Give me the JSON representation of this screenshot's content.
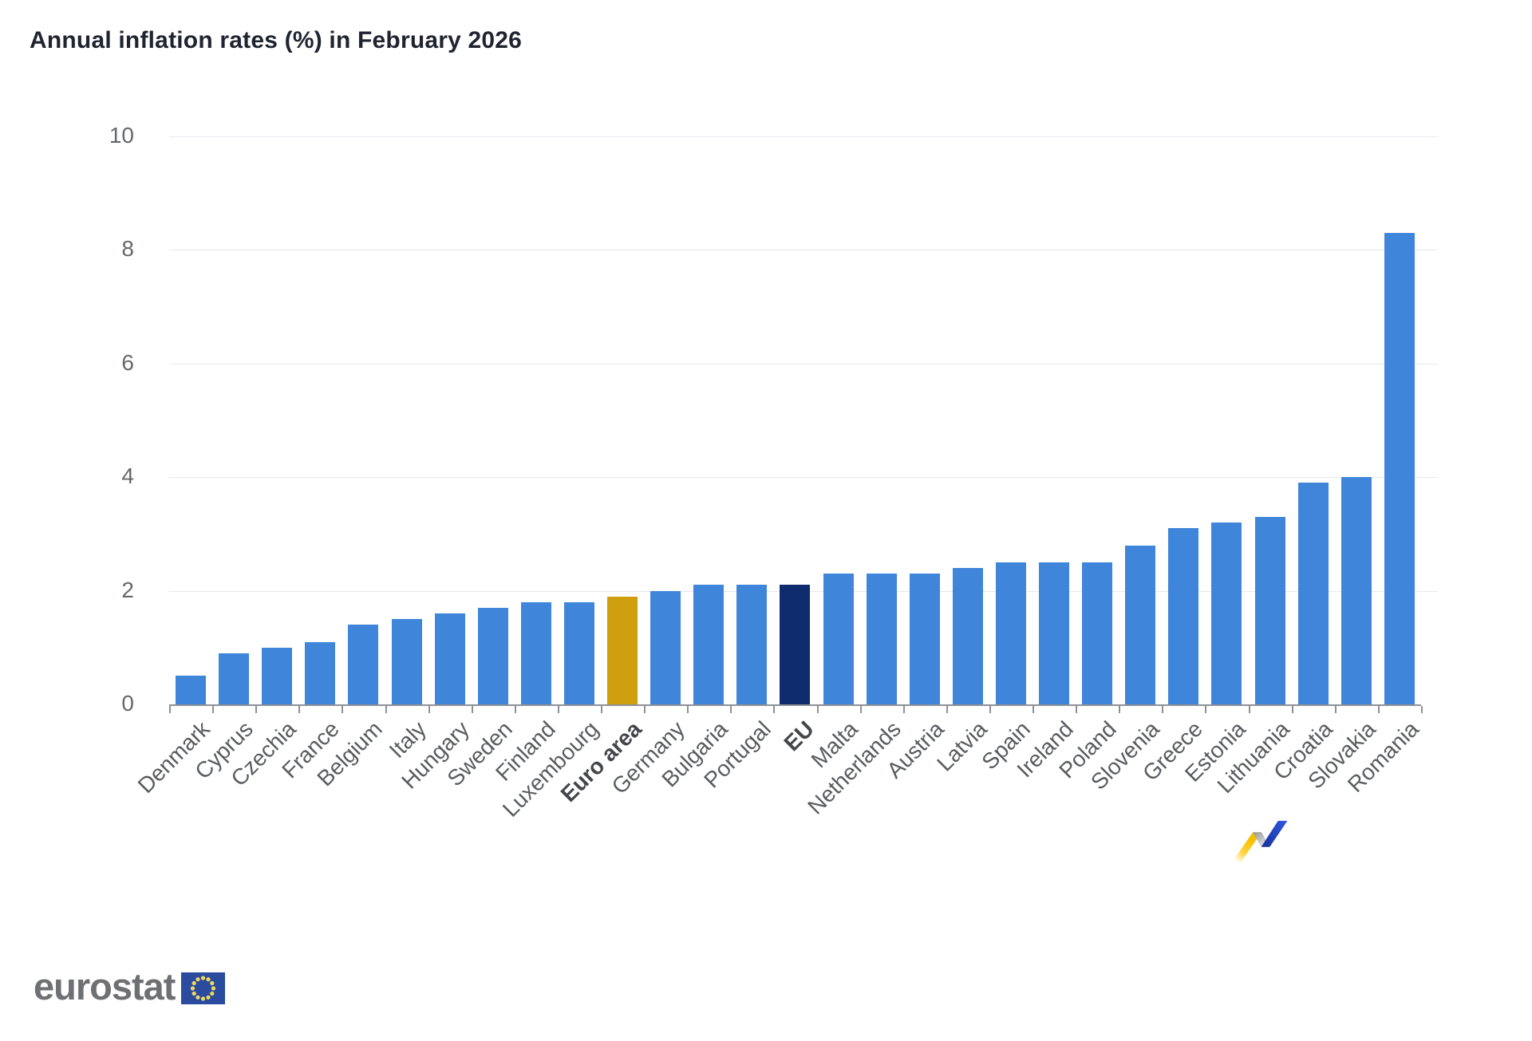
{
  "page": {
    "background": "#ffffff"
  },
  "header": {
    "title": "Annual inflation rates (%) in February 2026"
  },
  "chart_data": {
    "type": "bar",
    "title": "Annual inflation rates (%) in February 2026",
    "categories": [
      "Denmark",
      "Cyprus",
      "Czechia",
      "France",
      "Belgium",
      "Italy",
      "Hungary",
      "Sweden",
      "Finland",
      "Luxembourg",
      "Euro area",
      "Germany",
      "Bulgaria",
      "Portugal",
      "EU",
      "Malta",
      "Netherlands",
      "Austria",
      "Latvia",
      "Spain",
      "Ireland",
      "Poland",
      "Slovenia",
      "Greece",
      "Estonia",
      "Lithuania",
      "Croatia",
      "Slovakia",
      "Romania"
    ],
    "values": [
      0.5,
      0.9,
      1.0,
      1.1,
      1.4,
      1.5,
      1.6,
      1.7,
      1.8,
      1.8,
      1.9,
      2.0,
      2.1,
      2.1,
      2.1,
      2.3,
      2.3,
      2.3,
      2.4,
      2.5,
      2.5,
      2.5,
      2.8,
      3.1,
      3.2,
      3.3,
      3.9,
      4.0,
      8.3
    ],
    "highlighted_bold_categories": [
      "Euro area",
      "EU"
    ],
    "bar_color_default": "#3f86da",
    "bar_color_overrides": {
      "Euro area": "#cf9f10",
      "EU": "#0e2b6d"
    },
    "xlabel": "",
    "ylabel": "",
    "ylim": [
      0,
      10
    ],
    "yticks": [
      0,
      2,
      4,
      6,
      8,
      10
    ],
    "grid": "horizontal",
    "legend": "none"
  },
  "footer": {
    "brand_text": "eurostat",
    "flag_blue": "#2a4b9e",
    "flag_star_color": "#efd95c",
    "ribbon_yellow": "#f6c400",
    "ribbon_gray": "#aeb0b4",
    "ribbon_blue": "#2d55d8"
  }
}
